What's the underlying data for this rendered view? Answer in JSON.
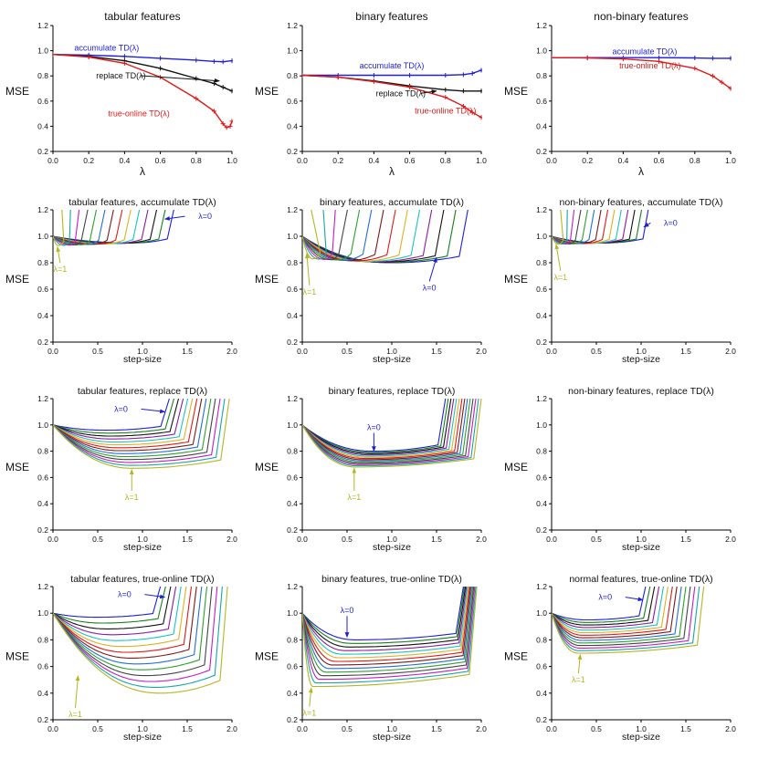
{
  "chart_data": [
    {
      "type": "line",
      "title": "tabular features",
      "xlabel": "λ",
      "ylabel": "MSE",
      "xlim": [
        0,
        1
      ],
      "ylim": [
        0.2,
        1.2
      ],
      "xticks": [
        "0.0",
        "0.2",
        "0.4",
        "0.6",
        "0.8",
        "1.0"
      ],
      "yticks": [
        "0.2",
        "0.4",
        "0.6",
        "0.8",
        "1.0",
        "1.2"
      ],
      "series": [
        {
          "name": "accumulate TD(λ)",
          "color": "#1f1fd6",
          "markers": true,
          "points": [
            [
              0,
              0.97
            ],
            [
              0.2,
              0.965
            ],
            [
              0.4,
              0.955
            ],
            [
              0.6,
              0.94
            ],
            [
              0.8,
              0.925
            ],
            [
              0.9,
              0.915
            ],
            [
              0.95,
              0.912
            ],
            [
              1.0,
              0.92
            ]
          ]
        },
        {
          "name": "replace TD(λ)",
          "color": "#111111",
          "markers": true,
          "points": [
            [
              0,
              0.97
            ],
            [
              0.2,
              0.955
            ],
            [
              0.4,
              0.92
            ],
            [
              0.6,
              0.86
            ],
            [
              0.8,
              0.78
            ],
            [
              0.9,
              0.74
            ],
            [
              0.95,
              0.71
            ],
            [
              1.0,
              0.68
            ]
          ]
        },
        {
          "name": "true-online TD(λ)",
          "color": "#e01a1a",
          "markers": true,
          "points": [
            [
              0,
              0.97
            ],
            [
              0.2,
              0.95
            ],
            [
              0.4,
              0.9
            ],
            [
              0.6,
              0.79
            ],
            [
              0.8,
              0.62
            ],
            [
              0.9,
              0.52
            ],
            [
              0.95,
              0.42
            ],
            [
              0.97,
              0.39
            ],
            [
              0.99,
              0.4
            ],
            [
              1.0,
              0.44
            ]
          ]
        }
      ],
      "annotations": [
        {
          "text": "accumulate TD(λ)",
          "color": "#1f1fd6",
          "at": [
            0.3,
            1.0
          ]
        },
        {
          "text": "replace TD(λ)",
          "color": "#111111",
          "at": [
            0.38,
            0.78
          ],
          "arrow_to": [
            0.93,
            0.76
          ]
        },
        {
          "text": "true-online TD(λ)",
          "color": "#e01a1a",
          "at": [
            0.48,
            0.48
          ]
        }
      ]
    },
    {
      "type": "line",
      "title": "binary features",
      "xlabel": "λ",
      "ylabel": "MSE",
      "xlim": [
        0,
        1
      ],
      "ylim": [
        0.2,
        1.2
      ],
      "xticks": [
        "0.0",
        "0.2",
        "0.4",
        "0.6",
        "0.8",
        "1.0"
      ],
      "yticks": [
        "0.2",
        "0.4",
        "0.6",
        "0.8",
        "1.0",
        "1.2"
      ],
      "series": [
        {
          "name": "accumulate TD(λ)",
          "color": "#1f1fd6",
          "markers": true,
          "points": [
            [
              0,
              0.805
            ],
            [
              0.2,
              0.805
            ],
            [
              0.4,
              0.805
            ],
            [
              0.6,
              0.805
            ],
            [
              0.8,
              0.805
            ],
            [
              0.9,
              0.81
            ],
            [
              0.95,
              0.82
            ],
            [
              1.0,
              0.845
            ]
          ]
        },
        {
          "name": "replace TD(λ)",
          "color": "#111111",
          "markers": true,
          "points": [
            [
              0,
              0.805
            ],
            [
              0.2,
              0.79
            ],
            [
              0.4,
              0.76
            ],
            [
              0.6,
              0.72
            ],
            [
              0.8,
              0.69
            ],
            [
              0.9,
              0.68
            ],
            [
              1.0,
              0.68
            ]
          ]
        },
        {
          "name": "true-online TD(λ)",
          "color": "#e01a1a",
          "markers": true,
          "points": [
            [
              0,
              0.805
            ],
            [
              0.2,
              0.79
            ],
            [
              0.4,
              0.755
            ],
            [
              0.6,
              0.71
            ],
            [
              0.8,
              0.63
            ],
            [
              0.9,
              0.56
            ],
            [
              0.95,
              0.51
            ],
            [
              1.0,
              0.47
            ]
          ]
        }
      ],
      "annotations": [
        {
          "text": "accumulate TD(λ)",
          "color": "#1f1fd6",
          "at": [
            0.5,
            0.86
          ]
        },
        {
          "text": "replace TD(λ)",
          "color": "#111111",
          "at": [
            0.55,
            0.64
          ],
          "arrow_to": [
            0.75,
            0.68
          ]
        },
        {
          "text": "true-online TD(λ)",
          "color": "#e01a1a",
          "at": [
            0.8,
            0.5
          ]
        }
      ]
    },
    {
      "type": "line",
      "title": "non-binary features",
      "xlabel": "λ",
      "ylabel": "MSE",
      "xlim": [
        0,
        1
      ],
      "ylim": [
        0.2,
        1.2
      ],
      "xticks": [
        "0.0",
        "0.2",
        "0.4",
        "0.6",
        "0.8",
        "1.0"
      ],
      "yticks": [
        "0.2",
        "0.4",
        "0.6",
        "0.8",
        "1.0",
        "1.2"
      ],
      "series": [
        {
          "name": "accumulate TD(λ)",
          "color": "#1f1fd6",
          "markers": true,
          "points": [
            [
              0,
              0.945
            ],
            [
              0.2,
              0.945
            ],
            [
              0.4,
              0.945
            ],
            [
              0.6,
              0.945
            ],
            [
              0.8,
              0.943
            ],
            [
              0.9,
              0.94
            ],
            [
              1.0,
              0.94
            ]
          ]
        },
        {
          "name": "true-online TD(λ)",
          "color": "#e01a1a",
          "markers": true,
          "points": [
            [
              0,
              0.945
            ],
            [
              0.2,
              0.943
            ],
            [
              0.4,
              0.935
            ],
            [
              0.6,
              0.915
            ],
            [
              0.8,
              0.86
            ],
            [
              0.9,
              0.8
            ],
            [
              0.95,
              0.75
            ],
            [
              1.0,
              0.7
            ]
          ]
        }
      ],
      "annotations": [
        {
          "text": "accumulate TD(λ)",
          "color": "#1f1fd6",
          "at": [
            0.52,
            0.97
          ]
        },
        {
          "text": "true-online TD(λ)",
          "color": "#e01a1a",
          "at": [
            0.55,
            0.86
          ]
        }
      ]
    },
    {
      "type": "line",
      "title": "tabular features, accumulate TD(λ)",
      "xlabel": "step-size",
      "ylabel": "MSE",
      "xlim": [
        0,
        2
      ],
      "ylim": [
        0.2,
        1.2
      ],
      "xticks": [
        "0.0",
        "0.5",
        "1.0",
        "1.5",
        "2.0"
      ],
      "yticks": [
        "0.2",
        "0.4",
        "0.6",
        "0.8",
        "1.0",
        "1.2"
      ],
      "family": {
        "y0": 1.0,
        "min_first": 0.95,
        "min_last": 0.93,
        "xmin_first": 0.9,
        "xmin_last": 0.06,
        "xe_first": 1.35,
        "xe_last": 0.1,
        "ye": 1.2,
        "sharp": 0.06
      },
      "annotations": [
        {
          "text": "λ=0",
          "color": "#1f1fd6",
          "at": [
            1.7,
            1.13
          ],
          "arrow_to": [
            1.25,
            1.13
          ]
        },
        {
          "text": "λ=1",
          "color": "#b5b522",
          "at": [
            0.08,
            0.73
          ],
          "arrow_to": [
            0.05,
            0.92
          ]
        }
      ]
    },
    {
      "type": "line",
      "title": "binary features, accumulate TD(λ)",
      "xlabel": "step-size",
      "ylabel": "MSE",
      "xlim": [
        0,
        2
      ],
      "ylim": [
        0.2,
        1.2
      ],
      "xticks": [
        "0.0",
        "0.5",
        "1.0",
        "1.5",
        "2.0"
      ],
      "yticks": [
        "0.2",
        "0.4",
        "0.6",
        "0.8",
        "1.0",
        "1.2"
      ],
      "family": {
        "y0": 1.0,
        "min_first": 0.8,
        "min_last": 0.83,
        "xmin_first": 1.0,
        "xmin_last": 0.12,
        "xe_first": 1.85,
        "xe_last": 0.1,
        "ye": 1.2,
        "sharp": 0.08
      },
      "annotations": [
        {
          "text": "λ=0",
          "color": "#1f1fd6",
          "at": [
            1.42,
            0.59
          ],
          "arrow_to": [
            1.5,
            0.84
          ]
        },
        {
          "text": "λ=1",
          "color": "#b5b522",
          "at": [
            0.08,
            0.56
          ],
          "arrow_to": [
            0.05,
            0.87
          ]
        }
      ]
    },
    {
      "type": "line",
      "title": "non-binary features, accumulate TD(λ)",
      "xlabel": "step-size",
      "ylabel": "MSE",
      "xlim": [
        0,
        2
      ],
      "ylim": [
        0.2,
        1.2
      ],
      "xticks": [
        "0.0",
        "0.5",
        "1.0",
        "1.5",
        "2.0"
      ],
      "yticks": [
        "0.2",
        "0.4",
        "0.6",
        "0.8",
        "1.0",
        "1.2"
      ],
      "family": {
        "y0": 1.0,
        "min_first": 0.95,
        "min_last": 0.94,
        "xmin_first": 0.6,
        "xmin_last": 0.08,
        "xe_first": 1.08,
        "xe_last": 0.1,
        "ye": 1.2,
        "sharp": 0.05
      },
      "annotations": [
        {
          "text": "λ=0",
          "color": "#1f1fd6",
          "at": [
            1.33,
            1.08
          ],
          "arrow_to": [
            1.03,
            1.07
          ]
        },
        {
          "text": "λ=1",
          "color": "#b5b522",
          "at": [
            0.1,
            0.67
          ],
          "arrow_to": [
            0.05,
            0.94
          ]
        }
      ]
    },
    {
      "type": "line",
      "title": "tabular features, replace TD(λ)",
      "xlabel": "step-size",
      "ylabel": "MSE",
      "xlim": [
        0,
        2
      ],
      "ylim": [
        0.2,
        1.2
      ],
      "xticks": [
        "0.0",
        "0.5",
        "1.0",
        "1.5",
        "2.0"
      ],
      "yticks": [
        "0.2",
        "0.4",
        "0.6",
        "0.8",
        "1.0",
        "1.2"
      ],
      "family": {
        "y0": 1.0,
        "min_first": 0.96,
        "min_last": 0.67,
        "xmin_first": 0.6,
        "xmin_last": 0.9,
        "xe_first": 1.3,
        "xe_last": 1.97,
        "ye": 1.2,
        "sharp": 0.08
      },
      "annotations": [
        {
          "text": "λ=0",
          "color": "#1f1fd6",
          "at": [
            0.76,
            1.1
          ],
          "arrow_to": [
            1.25,
            1.1
          ]
        },
        {
          "text": "λ=1",
          "color": "#b5b522",
          "at": [
            0.88,
            0.43
          ],
          "arrow_to": [
            0.88,
            0.66
          ]
        }
      ]
    },
    {
      "type": "line",
      "title": "binary features, replace TD(λ)",
      "xlabel": "step-size",
      "ylabel": "MSE",
      "xlim": [
        0,
        2
      ],
      "ylim": [
        0.2,
        1.2
      ],
      "xticks": [
        "0.0",
        "0.5",
        "1.0",
        "1.5",
        "2.0"
      ],
      "yticks": [
        "0.2",
        "0.4",
        "0.6",
        "0.8",
        "1.0",
        "1.2"
      ],
      "family": {
        "y0": 1.0,
        "min_first": 0.8,
        "min_last": 0.68,
        "xmin_first": 0.8,
        "xmin_last": 0.6,
        "xe_first": 1.6,
        "xe_last": 2.0,
        "ye": 1.2,
        "sharp": 0.07
      },
      "annotations": [
        {
          "text": "λ=0",
          "color": "#1f1fd6",
          "at": [
            0.8,
            0.96
          ],
          "arrow_to": [
            0.8,
            0.8
          ]
        },
        {
          "text": "λ=1",
          "color": "#b5b522",
          "at": [
            0.58,
            0.43
          ],
          "arrow_to": [
            0.58,
            0.67
          ]
        }
      ]
    },
    {
      "type": "line",
      "title": "non-binary features, replace TD(λ)",
      "xlabel": "step-size",
      "ylabel": "MSE",
      "xlim": [
        0,
        2
      ],
      "ylim": [
        0.2,
        1.2
      ],
      "xticks": [
        "0.0",
        "0.5",
        "1.0",
        "1.5",
        "2.0"
      ],
      "yticks": [
        "0.2",
        "0.4",
        "0.6",
        "0.8",
        "1.0",
        "1.2"
      ],
      "annotations": []
    },
    {
      "type": "line",
      "title": "tabular features, true-online TD(λ)",
      "xlabel": "step-size",
      "ylabel": "MSE",
      "xlim": [
        0,
        2
      ],
      "ylim": [
        0.2,
        1.2
      ],
      "xticks": [
        "0.0",
        "0.5",
        "1.0",
        "1.5",
        "2.0"
      ],
      "yticks": [
        "0.2",
        "0.4",
        "0.6",
        "0.8",
        "1.0",
        "1.2"
      ],
      "family": {
        "y0": 1.0,
        "min_first": 0.97,
        "min_last": 0.4,
        "xmin_first": 0.5,
        "xmin_last": 1.2,
        "xe_first": 1.2,
        "xe_last": 1.95,
        "ye": 1.2,
        "sharp": 0.07
      },
      "annotations": [
        {
          "text": "λ=0",
          "color": "#1f1fd6",
          "at": [
            0.8,
            1.12
          ],
          "arrow_to": [
            1.25,
            1.12
          ]
        },
        {
          "text": "λ=1",
          "color": "#b5b522",
          "at": [
            0.25,
            0.22
          ],
          "arrow_to": [
            0.28,
            0.53
          ]
        }
      ]
    },
    {
      "type": "line",
      "title": "binary features, true-online TD(λ)",
      "xlabel": "step-size",
      "ylabel": "MSE",
      "xlim": [
        0,
        2
      ],
      "ylim": [
        0.2,
        1.2
      ],
      "xticks": [
        "0.0",
        "0.5",
        "1.0",
        "1.5",
        "2.0"
      ],
      "yticks": [
        "0.2",
        "0.4",
        "0.6",
        "0.8",
        "1.0",
        "1.2"
      ],
      "family": {
        "y0": 1.0,
        "min_first": 0.8,
        "min_last": 0.45,
        "xmin_first": 0.6,
        "xmin_last": 0.12,
        "xe_first": 1.8,
        "xe_last": 1.95,
        "ye": 1.2,
        "sharp": 0.07
      },
      "annotations": [
        {
          "text": "λ=0",
          "color": "#1f1fd6",
          "at": [
            0.5,
            1.0
          ],
          "arrow_to": [
            0.5,
            0.82
          ]
        },
        {
          "text": "λ=1",
          "color": "#b5b522",
          "at": [
            0.08,
            0.23
          ],
          "arrow_to": [
            0.1,
            0.44
          ]
        }
      ]
    },
    {
      "type": "line",
      "title": "normal features, true-online TD(λ)",
      "xlabel": "step-size",
      "ylabel": "MSE",
      "xlim": [
        0,
        2
      ],
      "ylim": [
        0.2,
        1.2
      ],
      "xticks": [
        "0.0",
        "0.5",
        "1.0",
        "1.5",
        "2.0"
      ],
      "yticks": [
        "0.2",
        "0.4",
        "0.6",
        "0.8",
        "1.0",
        "1.2"
      ],
      "family": {
        "y0": 1.0,
        "min_first": 0.95,
        "min_last": 0.7,
        "xmin_first": 0.4,
        "xmin_last": 0.3,
        "xe_first": 1.05,
        "xe_last": 1.7,
        "ye": 1.2,
        "sharp": 0.06
      },
      "annotations": [
        {
          "text": "λ=0",
          "color": "#1f1fd6",
          "at": [
            0.6,
            1.1
          ],
          "arrow_to": [
            1.02,
            1.1
          ]
        },
        {
          "text": "λ=1",
          "color": "#b5b522",
          "at": [
            0.3,
            0.48
          ],
          "arrow_to": [
            0.32,
            0.69
          ]
        }
      ]
    }
  ],
  "palette": [
    "#1f1fd6",
    "#15801a",
    "#111111",
    "#8e1aa0",
    "#19c4c4",
    "#e0b020",
    "#e01a1a",
    "#7a1a1a",
    "#1f6fd6",
    "#2ea02e",
    "#444444",
    "#c81ac8",
    "#16a6a6",
    "#b5b522"
  ]
}
